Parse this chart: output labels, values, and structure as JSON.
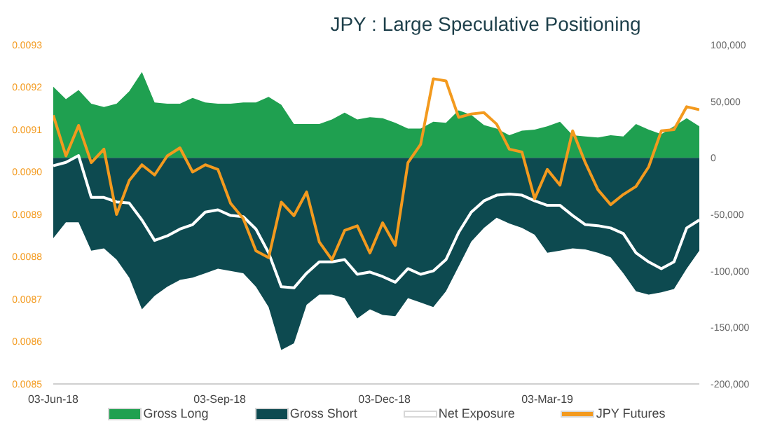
{
  "chart_data": {
    "type": "area",
    "title": "JPY : Large Speculative Positioning",
    "x": [
      "2018-06-03",
      "2018-06-10",
      "2018-06-17",
      "2018-06-24",
      "2018-07-01",
      "2018-07-08",
      "2018-07-15",
      "2018-07-22",
      "2018-07-29",
      "2018-08-05",
      "2018-08-12",
      "2018-08-19",
      "2018-08-26",
      "2018-09-02",
      "2018-09-09",
      "2018-09-16",
      "2018-09-23",
      "2018-09-30",
      "2018-10-07",
      "2018-10-14",
      "2018-10-21",
      "2018-10-28",
      "2018-11-04",
      "2018-11-11",
      "2018-11-18",
      "2018-11-25",
      "2018-12-02",
      "2018-12-09",
      "2018-12-16",
      "2018-12-23",
      "2018-12-30",
      "2019-01-06",
      "2019-01-13",
      "2019-01-20",
      "2019-01-27",
      "2019-02-03",
      "2019-02-10",
      "2019-02-17",
      "2019-02-24",
      "2019-03-03",
      "2019-03-10",
      "2019-03-17",
      "2019-03-24",
      "2019-03-31",
      "2019-04-07",
      "2019-04-14",
      "2019-04-21",
      "2019-04-28",
      "2019-05-05",
      "2019-05-12",
      "2019-05-19",
      "2019-05-26"
    ],
    "series": [
      {
        "name": "Gross Long",
        "axis": "y2",
        "color": "#1fa050",
        "values": [
          63000,
          52000,
          60000,
          48000,
          45000,
          48000,
          59000,
          76000,
          49000,
          48000,
          48000,
          53000,
          49000,
          48000,
          48000,
          49000,
          49000,
          54000,
          47000,
          30000,
          30000,
          30000,
          34000,
          40000,
          34000,
          36000,
          35000,
          31000,
          26000,
          26000,
          32000,
          31000,
          42000,
          38000,
          29000,
          26000,
          20000,
          24000,
          25000,
          28000,
          32000,
          20000,
          19000,
          18000,
          20000,
          19000,
          30000,
          25000,
          21000,
          28000,
          35000,
          28000
        ]
      },
      {
        "name": "Gross Short",
        "axis": "y2",
        "color": "#0d4a50",
        "values": [
          -71000,
          -57000,
          -57000,
          -82000,
          -80000,
          -90000,
          -106000,
          -134000,
          -122000,
          -114000,
          -108000,
          -106000,
          -102000,
          -98000,
          -100000,
          -102000,
          -114000,
          -132000,
          -170000,
          -164000,
          -130000,
          -121000,
          -121000,
          -124000,
          -142000,
          -134000,
          -139000,
          -140000,
          -124000,
          -128000,
          -132000,
          -118000,
          -96000,
          -74000,
          -62000,
          -53000,
          -58000,
          -62000,
          -68000,
          -84000,
          -82000,
          -80000,
          -81000,
          -84000,
          -88000,
          -102000,
          -118000,
          -121000,
          -119000,
          -116000,
          -98000,
          -82000
        ]
      },
      {
        "name": "Net Exposure",
        "type": "line",
        "axis": "y2",
        "color": "#ffffff",
        "values": [
          -7000,
          -4000,
          2000,
          -35000,
          -35000,
          -39000,
          -40000,
          -55000,
          -73000,
          -69000,
          -63000,
          -59000,
          -48000,
          -46000,
          -51000,
          -52000,
          -63000,
          -84000,
          -114000,
          -115000,
          -102000,
          -92000,
          -92000,
          -90000,
          -103000,
          -101000,
          -105000,
          -110000,
          -98000,
          -103000,
          -100000,
          -90000,
          -66000,
          -48000,
          -38000,
          -33000,
          -32000,
          -33000,
          -38000,
          -42000,
          -42000,
          -51000,
          -59000,
          -60000,
          -62000,
          -67000,
          -84000,
          -92000,
          -98000,
          -92000,
          -62000,
          -55000
        ]
      },
      {
        "name": "JPY Futures",
        "type": "line",
        "color": "#f39a1e",
        "values": [
          0.009134,
          0.009038,
          0.00911,
          0.009022,
          0.009054,
          0.0089,
          0.00898,
          0.009017,
          0.008993,
          0.009038,
          0.009057,
          0.009,
          0.009017,
          0.009006,
          0.008926,
          0.00889,
          0.008814,
          0.008798,
          0.008929,
          0.008897,
          0.008953,
          0.008835,
          0.008793,
          0.008862,
          0.008873,
          0.008809,
          0.00888,
          0.008827,
          0.009022,
          0.009065,
          0.00922,
          0.009215,
          0.009129,
          0.009137,
          0.00914,
          0.009113,
          0.009054,
          0.009047,
          0.008937,
          0.009006,
          0.008969,
          0.009097,
          0.009022,
          0.008958,
          0.008923,
          0.008947,
          0.008966,
          0.009012,
          0.009097,
          0.0091,
          0.009154,
          0.009147
        ]
      }
    ],
    "ylim": [
      0.0085,
      0.0093
    ],
    "yticks": [
      {
        "value": 0.0085,
        "label": "0.0085"
      },
      {
        "value": 0.0086,
        "label": "0.0086"
      },
      {
        "value": 0.0087,
        "label": "0.0087"
      },
      {
        "value": 0.0088,
        "label": "0.0088"
      },
      {
        "value": 0.0089,
        "label": "0.0089"
      },
      {
        "value": 0.009,
        "label": "0.0090"
      },
      {
        "value": 0.0091,
        "label": "0.0091"
      },
      {
        "value": 0.0092,
        "label": "0.0092"
      },
      {
        "value": 0.0093,
        "label": "0.0093"
      }
    ],
    "y2lim": [
      -200000,
      100000
    ],
    "y2ticks": [
      {
        "value": -200000,
        "label": "-200,000"
      },
      {
        "value": -150000,
        "label": "-150,000"
      },
      {
        "value": -100000,
        "label": "-100,000"
      },
      {
        "value": -50000,
        "label": "-50,000"
      },
      {
        "value": 0,
        "label": "0"
      },
      {
        "value": 50000,
        "label": "50,000"
      },
      {
        "value": 100000,
        "label": "100,000"
      }
    ],
    "xlim": [
      "2018-06-03",
      "2019-05-26"
    ],
    "xticks": [
      {
        "value": "2018-06-03",
        "label": "03-Jun-18"
      },
      {
        "value": "2018-09-03",
        "label": "03-Sep-18"
      },
      {
        "value": "2018-12-03",
        "label": "03-Dec-18"
      },
      {
        "value": "2019-03-03",
        "label": "03-Mar-19"
      }
    ],
    "grid": false,
    "legend": "bottom",
    "marker": "none",
    "line_style": "solid"
  }
}
